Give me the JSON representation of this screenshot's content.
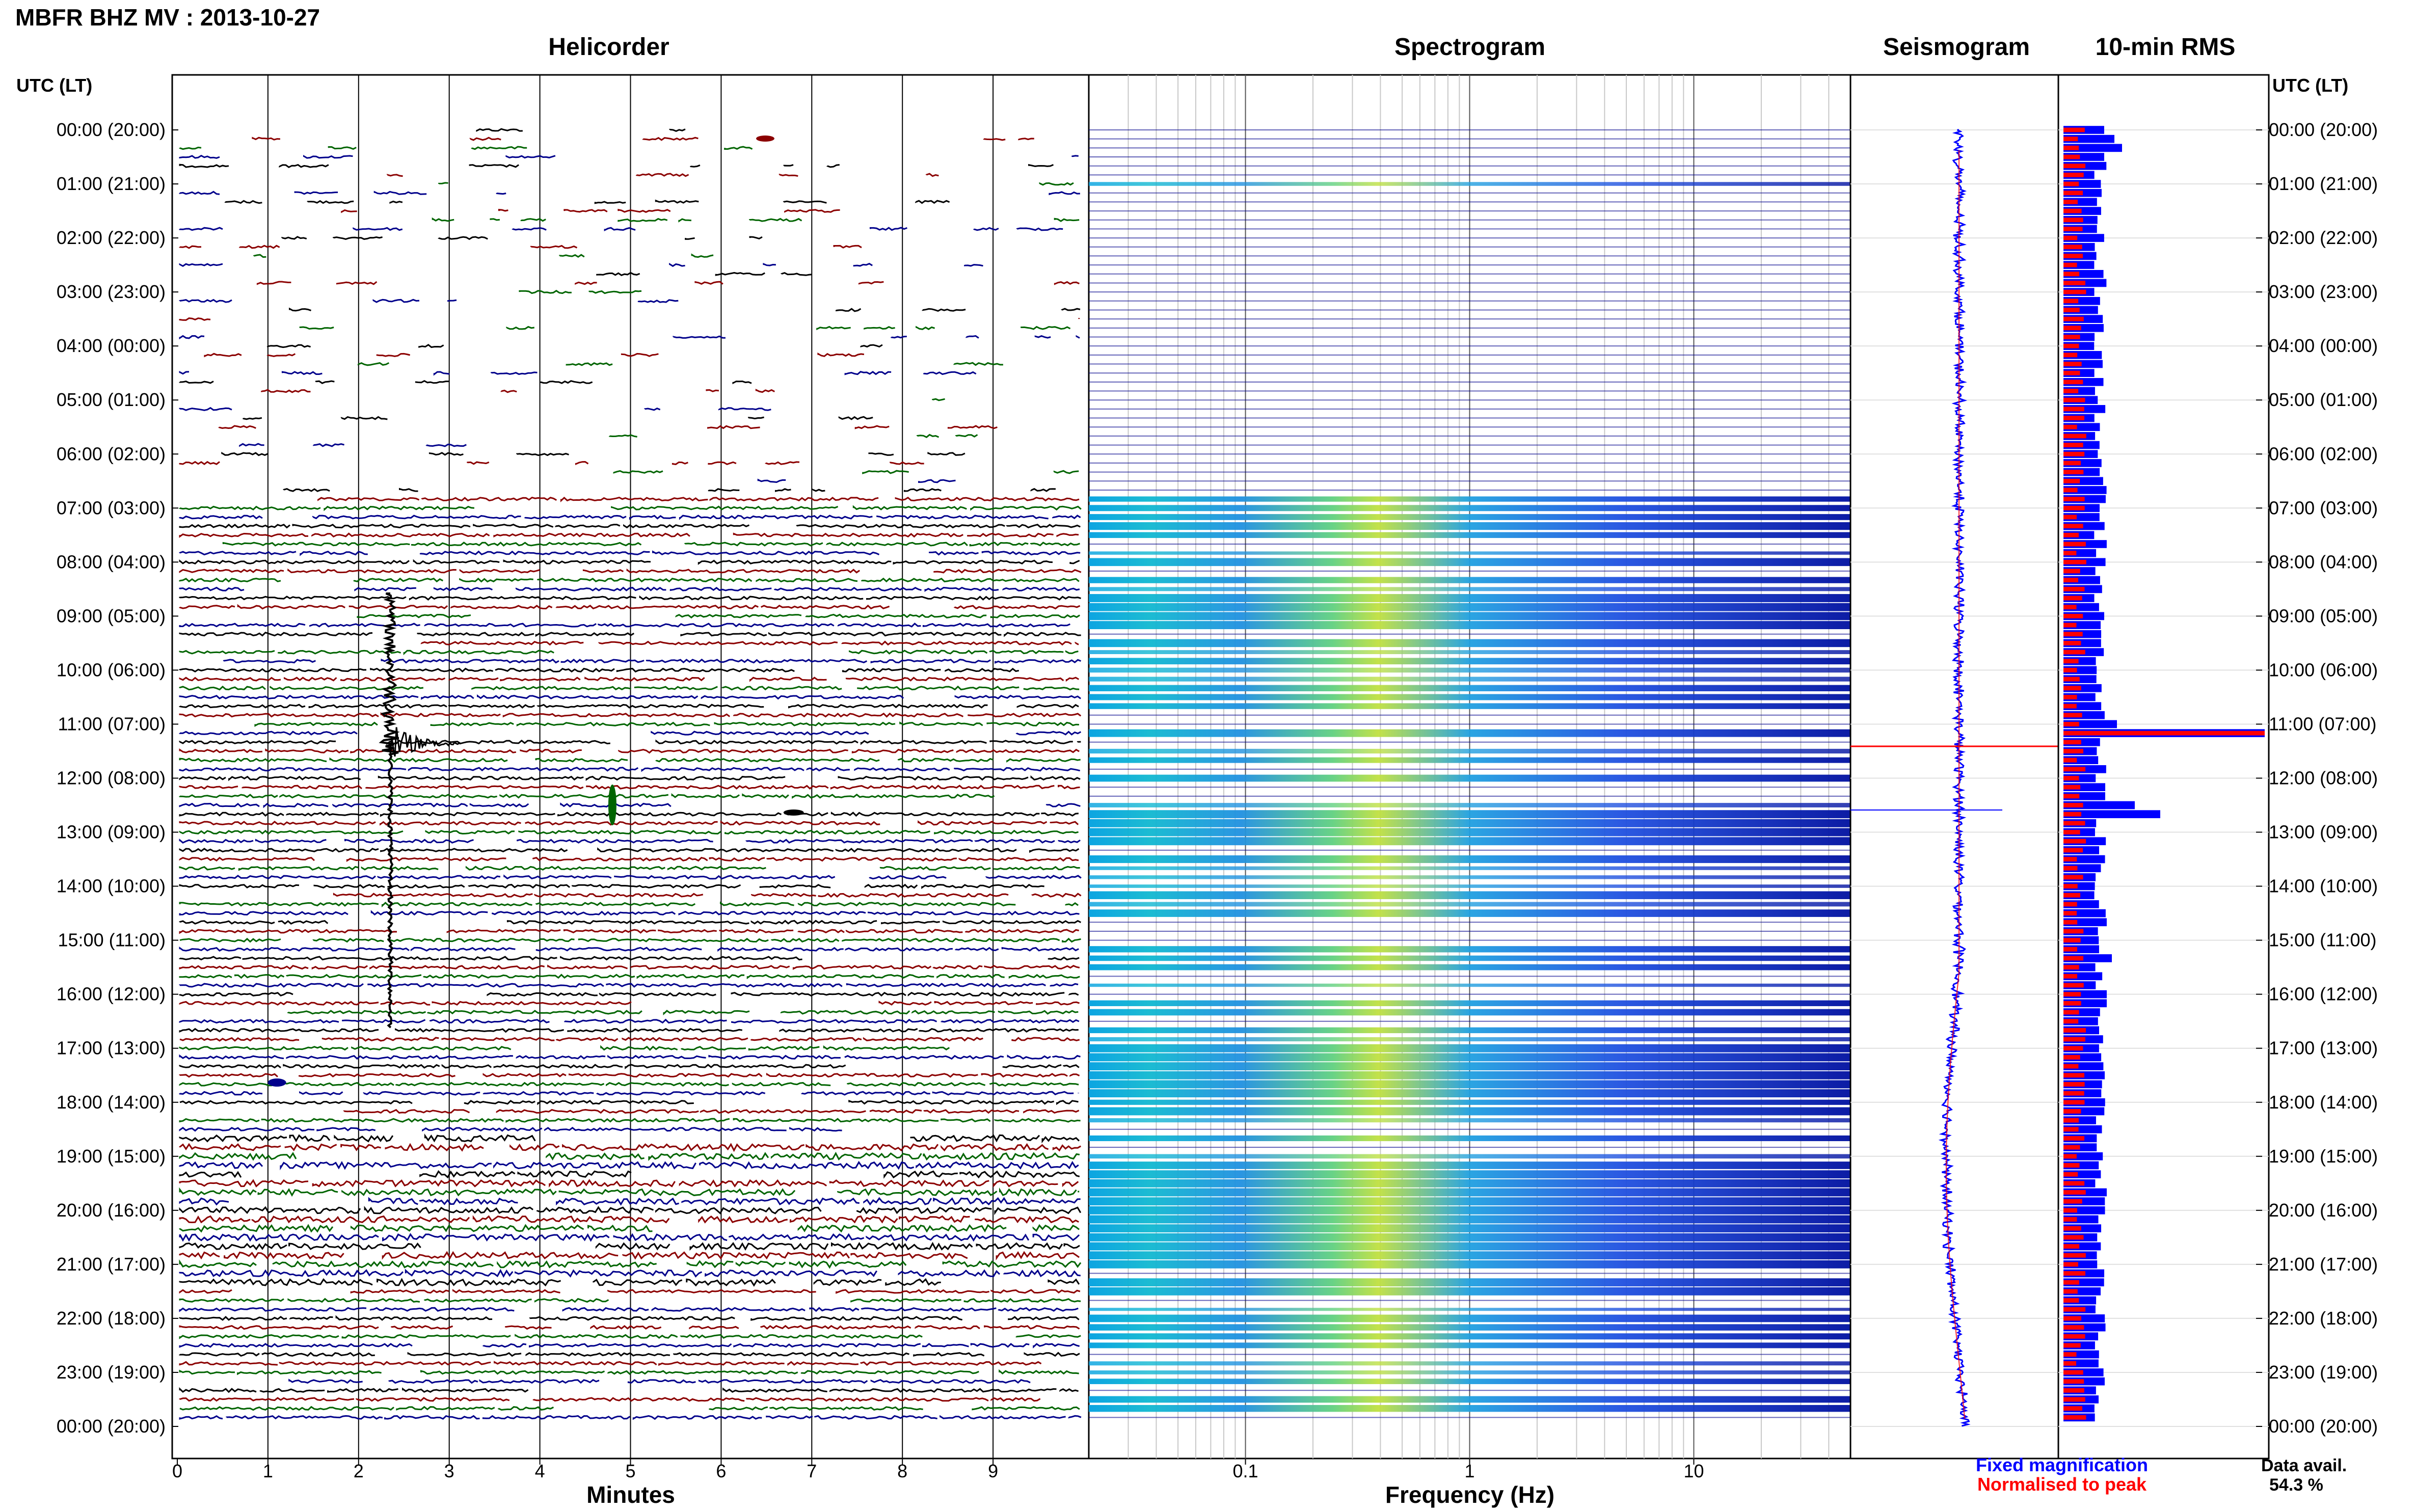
{
  "header": {
    "title": "MBFR BHZ MV : 2013-10-27",
    "utc_label": "UTC (LT)",
    "utc_label_right": "UTC (LT)"
  },
  "panels": {
    "helicorder": "Helicorder",
    "spectrogram": "Spectrogram",
    "seismogram": "Seismogram",
    "rms": "10-min RMS"
  },
  "axes": {
    "helicorder_xlabel": "Minutes",
    "spectrogram_xlabel": "Frequency (Hz)",
    "minute_ticks": [
      "0",
      "1",
      "2",
      "3",
      "4",
      "5",
      "6",
      "7",
      "8",
      "9"
    ],
    "freq_ticks": [
      "0.1",
      "1",
      "10"
    ]
  },
  "time_labels": [
    "00:00 (20:00)",
    "01:00 (21:00)",
    "02:00 (22:00)",
    "03:00 (23:00)",
    "04:00 (00:00)",
    "05:00 (01:00)",
    "06:00 (02:00)",
    "07:00 (03:00)",
    "08:00 (04:00)",
    "09:00 (05:00)",
    "10:00 (06:00)",
    "11:00 (07:00)",
    "12:00 (08:00)",
    "13:00 (09:00)",
    "14:00 (10:00)",
    "15:00 (11:00)",
    "16:00 (12:00)",
    "17:00 (13:00)",
    "18:00 (14:00)",
    "19:00 (15:00)",
    "20:00 (16:00)",
    "21:00 (17:00)",
    "22:00 (18:00)",
    "23:00 (19:00)",
    "00:00 (20:00)"
  ],
  "legend": {
    "fixed": "Fixed magnification",
    "normalised": "Normalised to peak",
    "fixed_color": "#0000ff",
    "normalised_color": "#ff0000"
  },
  "availability": {
    "label": "Data avail.",
    "value": "54.3 %"
  },
  "colors": {
    "trace_cycle": [
      "#000000",
      "#8b0000",
      "#006400",
      "#00008b"
    ],
    "rms_fixed": "#0000ff",
    "rms_normalised": "#ff0000",
    "spectrogram_base": "#00008b"
  },
  "chart_data": [
    {
      "type": "line",
      "name": "helicorder",
      "title": "Helicorder",
      "xlabel": "Minutes",
      "xlim": [
        0,
        10
      ],
      "rows_per_hour": 6,
      "hours": 24,
      "events": [
        {
          "utc": "11:24",
          "minute": 2.35,
          "description_visible": false
        },
        {
          "utc": "12:27",
          "minute": 4.8
        },
        {
          "utc": "17:45",
          "minute": 1.1
        }
      ]
    },
    {
      "type": "heatmap",
      "name": "spectrogram",
      "title": "Spectrogram",
      "xlabel": "Frequency (Hz)",
      "x_scale": "log",
      "xlim": [
        0.02,
        50
      ]
    },
    {
      "type": "bar",
      "name": "rms",
      "title": "10-min RMS",
      "series": [
        {
          "name": "Fixed magnification"
        },
        {
          "name": "Normalised to peak"
        }
      ]
    }
  ]
}
